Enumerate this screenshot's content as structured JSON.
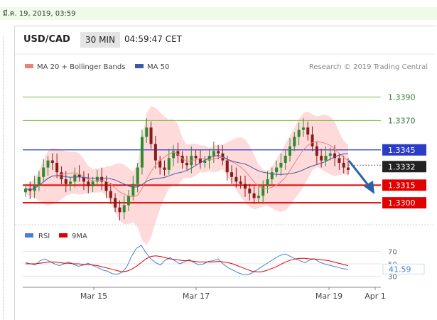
{
  "date_stamp": "มี.ค. 19, 2019, 03:59",
  "header": {
    "symbol": "USD/CAD",
    "timeframe": "30 MIN",
    "clock": "04:59:47 CET"
  },
  "legend": {
    "ma20": "MA 20 + Bollinger Bands",
    "ma50": "MA 50",
    "credit": "Research © 2019 Trading Central"
  },
  "rsi_legend": {
    "rsi": "RSI",
    "ma": "9MA"
  },
  "colors": {
    "support": "#e00000",
    "resistance": "#2a3cc8",
    "green_level": "#7bc144",
    "band_fill": "#ffd6d6",
    "ma20": "#f08080",
    "ma50": "#3a5aa8",
    "candle_up": "#2e8b2e",
    "candle_down": "#8b1a1a",
    "rsi": "#4a7fd6",
    "rsi_ma": "#e00000",
    "arrow": "#2a62a8"
  },
  "chart_data": [
    {
      "type": "candlestick",
      "instrument": "USD/CAD",
      "interval": "30 MIN",
      "x_ticks": [
        "Mar 15",
        "Mar 17",
        "Mar 19",
        "Apr 1"
      ],
      "ylim": [
        1.3288,
        1.3412
      ],
      "levels": [
        {
          "value": 1.339,
          "label": "1.3390",
          "kind": "green"
        },
        {
          "value": 1.337,
          "label": "1.3370",
          "kind": "green"
        },
        {
          "value": 1.3345,
          "label": "1.3345",
          "kind": "resistance"
        },
        {
          "value": 1.3332,
          "label": "1.3332",
          "kind": "current"
        },
        {
          "value": 1.3315,
          "label": "1.3315",
          "kind": "support"
        },
        {
          "value": 1.33,
          "label": "1.3300",
          "kind": "support"
        }
      ],
      "current_price": 1.3332,
      "close_series_approx": [
        1.3312,
        1.331,
        1.3315,
        1.3322,
        1.333,
        1.3336,
        1.3334,
        1.3326,
        1.332,
        1.3316,
        1.3318,
        1.3324,
        1.3322,
        1.3318,
        1.3314,
        1.3318,
        1.3322,
        1.3318,
        1.331,
        1.3304,
        1.3296,
        1.3292,
        1.3298,
        1.3306,
        1.3316,
        1.333,
        1.3356,
        1.3364,
        1.335,
        1.3336,
        1.333,
        1.3328,
        1.3338,
        1.3344,
        1.334,
        1.3334,
        1.3332,
        1.334,
        1.3338,
        1.3334,
        1.3336,
        1.334,
        1.3344,
        1.3342,
        1.3336,
        1.3326,
        1.3322,
        1.3318,
        1.3316,
        1.3312,
        1.3308,
        1.3304,
        1.3306,
        1.3314,
        1.332,
        1.3326,
        1.333,
        1.3334,
        1.334,
        1.3348,
        1.3356,
        1.3362,
        1.3364,
        1.3358,
        1.3348,
        1.334,
        1.3336,
        1.334,
        1.3342,
        1.3338,
        1.3334,
        1.333,
        1.3328
      ]
    },
    {
      "type": "line",
      "title": "RSI",
      "y_ticks": [
        70,
        50,
        30
      ],
      "current_value": 41.59,
      "series": [
        {
          "name": "RSI",
          "values": [
            52,
            50,
            48,
            55,
            58,
            54,
            50,
            47,
            50,
            53,
            49,
            46,
            48,
            51,
            47,
            44,
            40,
            38,
            34,
            33,
            36,
            45,
            62,
            75,
            80,
            68,
            58,
            52,
            48,
            56,
            60,
            55,
            50,
            53,
            57,
            52,
            48,
            50,
            54,
            55,
            58,
            50,
            44,
            40,
            36,
            33,
            32,
            35,
            40,
            45,
            50,
            55,
            60,
            64,
            66,
            62,
            58,
            55,
            52,
            56,
            58,
            53,
            50,
            48,
            46,
            44,
            42,
            41
          ]
        },
        {
          "name": "9MA",
          "values": [
            50,
            50,
            50,
            51,
            52,
            53,
            53,
            52,
            51,
            51,
            50,
            50,
            49,
            49,
            48,
            47,
            45,
            43,
            41,
            39,
            37,
            38,
            41,
            46,
            52,
            58,
            62,
            63,
            62,
            60,
            58,
            57,
            56,
            55,
            55,
            54,
            53,
            53,
            53,
            53,
            54,
            53,
            52,
            50,
            47,
            44,
            41,
            38,
            37,
            37,
            39,
            42,
            45,
            49,
            53,
            56,
            58,
            59,
            59,
            58,
            58,
            57,
            56,
            55,
            53,
            51,
            49,
            47
          ]
        }
      ]
    }
  ]
}
